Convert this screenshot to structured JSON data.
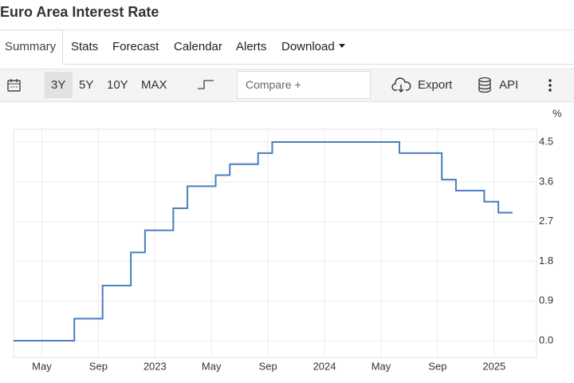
{
  "header": {
    "title": "Euro Area Interest Rate"
  },
  "tabs": [
    "Summary",
    "Stats",
    "Forecast",
    "Calendar",
    "Alerts",
    "Download"
  ],
  "toolbar": {
    "ranges": [
      "3Y",
      "5Y",
      "10Y",
      "MAX"
    ],
    "compare_placeholder": "Compare +",
    "export": "Export",
    "api": "API"
  },
  "chart_data": {
    "type": "line",
    "step": true,
    "unit": "%",
    "color": "#4a7ebf",
    "x": [
      "2022-03",
      "2022-07",
      "2022-09",
      "2022-11",
      "2022-12",
      "2023-02",
      "2023-03",
      "2023-05",
      "2023-06",
      "2023-08",
      "2023-09",
      "2024-06",
      "2024-09",
      "2024-10",
      "2024-12",
      "2025-01",
      "2025-02"
    ],
    "series": [
      {
        "name": "Euro Area Interest Rate",
        "color": "#4a7ebf",
        "values": [
          0,
          0.5,
          1.25,
          2.0,
          2.5,
          3.0,
          3.5,
          3.75,
          4.0,
          4.25,
          4.5,
          4.25,
          3.65,
          3.4,
          3.15,
          2.9,
          2.9
        ]
      }
    ],
    "xlim": [
      "2022-03",
      "2025-04"
    ],
    "xticks": [
      {
        "value": "2022-05",
        "label": "May"
      },
      {
        "value": "2022-09",
        "label": "Sep"
      },
      {
        "value": "2023-01",
        "label": "2023"
      },
      {
        "value": "2023-05",
        "label": "May"
      },
      {
        "value": "2023-09",
        "label": "Sep"
      },
      {
        "value": "2024-01",
        "label": "2024"
      },
      {
        "value": "2024-05",
        "label": "May"
      },
      {
        "value": "2024-09",
        "label": "Sep"
      },
      {
        "value": "2025-01",
        "label": "2025"
      }
    ],
    "ylim": [
      -0.38,
      4.79
    ],
    "yticks": [
      {
        "value": 0,
        "label": "0.0"
      },
      0.9,
      1.8,
      2.7,
      3.6,
      4.5
    ],
    "grid": true
  }
}
